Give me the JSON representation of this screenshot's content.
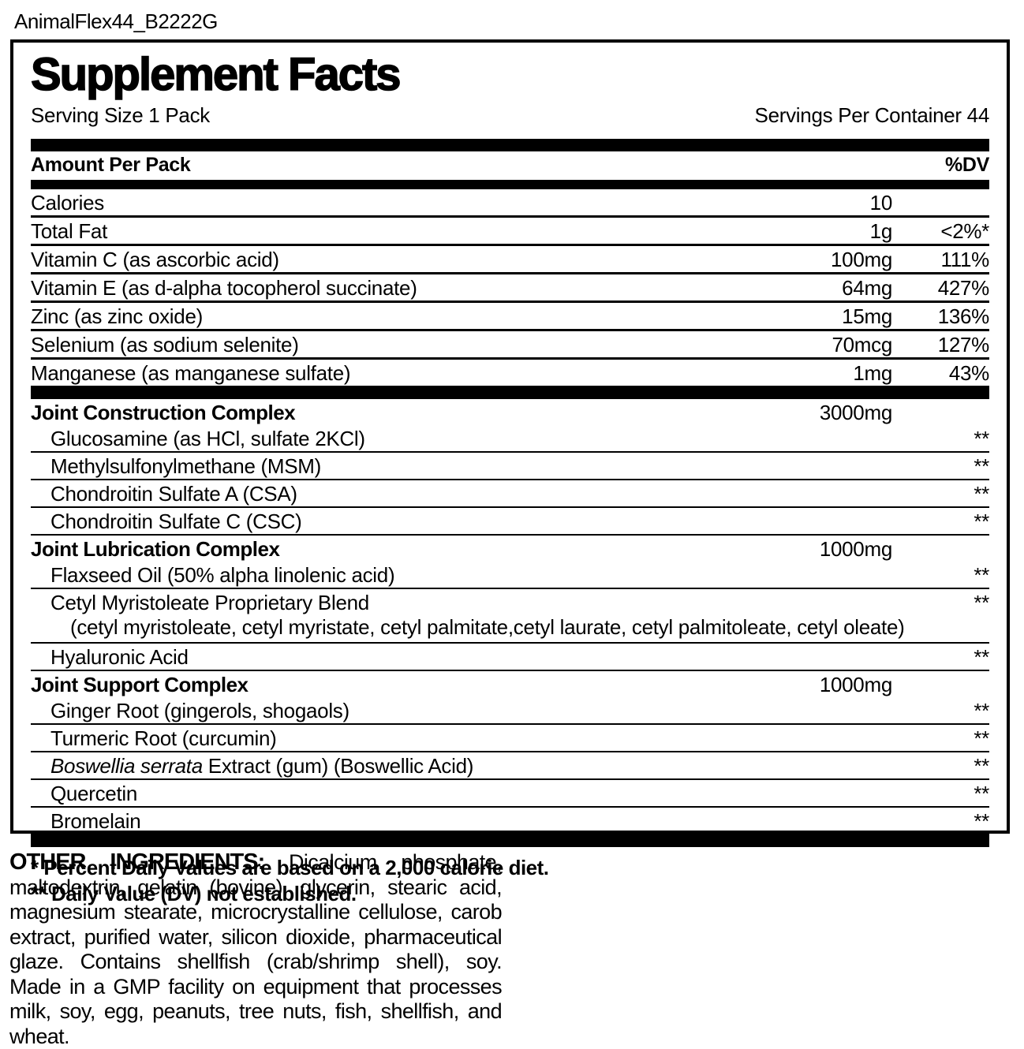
{
  "doc_title": "AnimalFlex44_B2222G",
  "panel": {
    "title": "Supplement Facts",
    "serving_size": "Serving Size 1 Pack",
    "servings_per_container": "Servings Per Container 44",
    "col_header_left": "Amount Per Pack",
    "col_header_right": "%DV",
    "nutrients": [
      {
        "label": "Calories",
        "amount": "10",
        "dv": ""
      },
      {
        "label": "Total Fat",
        "amount": "1g",
        "dv": "<2%*"
      },
      {
        "label": "Vitamin C (as ascorbic acid)",
        "amount": "100mg",
        "dv": "111%"
      },
      {
        "label": "Vitamin E (as d-alpha tocopherol succinate)",
        "amount": "64mg",
        "dv": "427%"
      },
      {
        "label": "Zinc (as zinc oxide)",
        "amount": "15mg",
        "dv": "136%"
      },
      {
        "label": "Selenium (as sodium selenite)",
        "amount": "70mcg",
        "dv": "127%"
      },
      {
        "label": "Manganese (as manganese sulfate)",
        "amount": "1mg",
        "dv": "43%"
      }
    ],
    "complexes": [
      {
        "heading": "Joint Construction Complex",
        "amount": "3000mg",
        "items": [
          {
            "label": "Glucosamine (as HCl, sulfate 2KCl)",
            "dv": "**"
          },
          {
            "label": "Methylsulfonylmethane (MSM)",
            "dv": "**"
          },
          {
            "label": "Chondroitin Sulfate A (CSA)",
            "dv": "**"
          },
          {
            "label": "Chondroitin Sulfate C (CSC)",
            "dv": "**"
          }
        ]
      },
      {
        "heading": "Joint Lubrication Complex",
        "amount": "1000mg",
        "items": [
          {
            "label": "Flaxseed Oil (50% alpha linolenic acid)",
            "dv": "**"
          },
          {
            "label": "Cetyl Myristoleate Proprietary Blend",
            "dv": "**",
            "subtext": "(cetyl myristoleate, cetyl myristate, cetyl palmitate,cetyl laurate, cetyl palmitoleate, cetyl oleate)"
          },
          {
            "label": "Hyaluronic Acid",
            "dv": "**"
          }
        ]
      },
      {
        "heading": "Joint Support Complex",
        "amount": "1000mg",
        "items": [
          {
            "label": "Ginger Root (gingerols, shogaols)",
            "dv": "**"
          },
          {
            "label": "Turmeric Root (curcumin)",
            "dv": "**"
          },
          {
            "label_italic": "Boswellia serrata",
            "label_rest": " Extract (gum) (Boswellic Acid)",
            "dv": "**"
          },
          {
            "label": "Quercetin",
            "dv": "**"
          },
          {
            "label": "Bromelain",
            "dv": "**"
          }
        ]
      }
    ],
    "footnotes": [
      "* Percent Daily Values are based on a 2,000 calorie diet.",
      "** Daily Value (DV) not established."
    ]
  },
  "other_ingredients": {
    "heading": "OTHER INGREDIENTS:",
    "text": " Dicalcium phosphate, maltodextrin, gelatin (bovine), glycerin, stearic acid, magnesium stearate, microcrystalline cellulose, carob extract, purified water, silicon dioxide, pharmaceutical glaze. Contains shellfish (crab/shrimp shell), soy. Made in a GMP facility on equipment that processes milk, soy, egg, peanuts, tree nuts, fish, shellfish, and wheat."
  }
}
